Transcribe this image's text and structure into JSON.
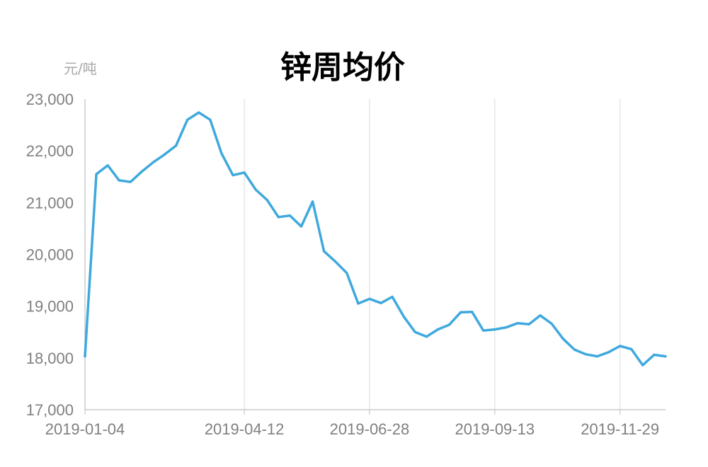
{
  "chart_data": {
    "type": "line",
    "title": "锌周均价",
    "ylabel": "元/吨",
    "xlabel": "",
    "ylim": [
      17000,
      23000
    ],
    "yticks": [
      "23,000",
      "22,000",
      "21,000",
      "20,000",
      "19,000",
      "18,000",
      "17,000"
    ],
    "ytick_values": [
      23000,
      22000,
      21000,
      20000,
      19000,
      18000,
      17000
    ],
    "xtick_labels": [
      "2019-01-04",
      "2019-04-12",
      "2019-06-28",
      "2019-09-13",
      "2019-11-29"
    ],
    "xtick_indices": [
      0,
      14,
      25,
      36,
      47
    ],
    "grid": "vertical",
    "line_color": "#3fa9dd",
    "series": [
      {
        "values": [
          18030,
          21550,
          21720,
          21430,
          21400,
          21600,
          21780,
          21930,
          22100,
          22600,
          22740,
          22600,
          21950,
          21530,
          21580,
          21250,
          21050,
          20720,
          20750,
          20540,
          21020,
          20060,
          19860,
          19640,
          19050,
          19140,
          19060,
          19180,
          18800,
          18500,
          18410,
          18550,
          18640,
          18880,
          18890,
          18530,
          18550,
          18590,
          18670,
          18650,
          18820,
          18660,
          18370,
          18160,
          18070,
          18030,
          18110,
          18230,
          18170,
          17860,
          18060,
          18030
        ]
      }
    ]
  }
}
